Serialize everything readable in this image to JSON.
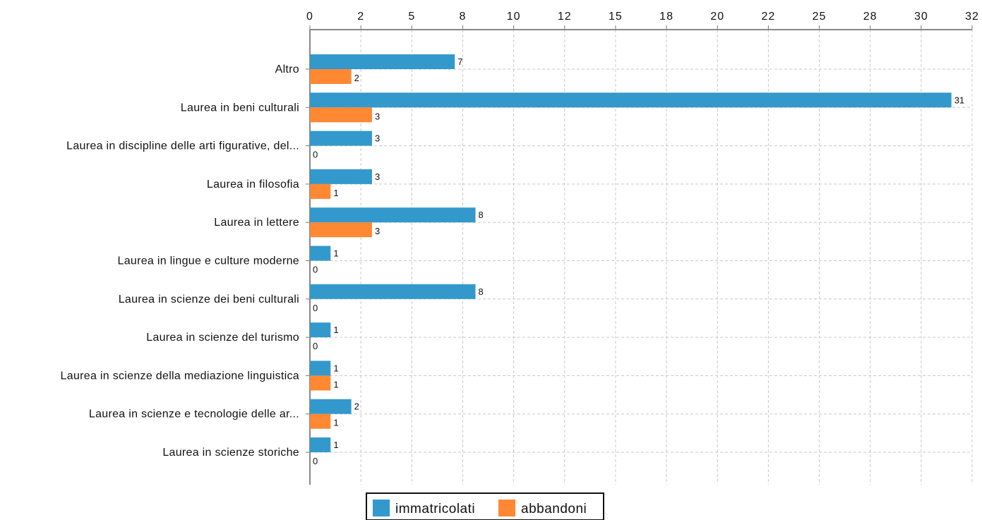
{
  "chart_data": {
    "type": "bar",
    "orientation": "horizontal",
    "x_axis_position": "top",
    "grid": true,
    "legend_placement": "bottom",
    "x_ticks": [
      "0",
      "2",
      "5",
      "8",
      "10",
      "12",
      "15",
      "18",
      "20",
      "22",
      "25",
      "28",
      "30",
      "32"
    ],
    "xlim": [
      0,
      32
    ],
    "categories": [
      "Altro",
      "Laurea in beni culturali",
      "Laurea in discipline delle arti figurative, del...",
      "Laurea in filosofia",
      "Laurea in lettere",
      "Laurea in lingue e culture moderne",
      "Laurea in scienze dei beni culturali",
      "Laurea in scienze del turismo",
      "Laurea in scienze della mediazione linguistica",
      "Laurea in scienze e tecnologie delle ar...",
      "Laurea in scienze storiche"
    ],
    "series": [
      {
        "name": "immatricolati",
        "color": "#3399cc",
        "values": [
          7,
          31,
          3,
          3,
          8,
          1,
          8,
          1,
          1,
          2,
          1
        ]
      },
      {
        "name": "abbandoni",
        "color": "#ff8833",
        "values": [
          2,
          3,
          0,
          1,
          3,
          0,
          0,
          0,
          1,
          1,
          0
        ]
      }
    ]
  }
}
